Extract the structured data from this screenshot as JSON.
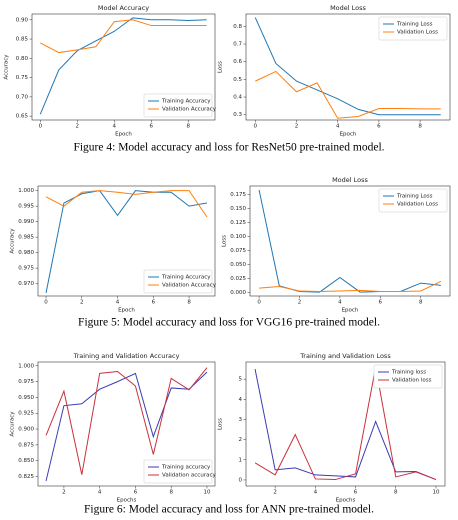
{
  "chart_data": [
    {
      "type": "line",
      "title": "Model Accuracy",
      "x_label": "Epoch",
      "y_label": "Accuracy",
      "x": [
        0,
        1,
        2,
        3,
        4,
        5,
        6,
        7,
        8,
        9
      ],
      "xlim": [
        -0.45,
        9.45
      ],
      "xticks": [
        0,
        2,
        4,
        6,
        8
      ],
      "ylim": [
        0.64,
        0.915
      ],
      "yticks": [
        {
          "value": 0.65,
          "label": "0.65"
        },
        {
          "value": 0.7,
          "label": "0.70"
        },
        {
          "value": 0.75,
          "label": "0.75"
        },
        {
          "value": 0.8,
          "label": "0.80"
        },
        {
          "value": 0.85,
          "label": "0.85"
        },
        {
          "value": 0.9,
          "label": "0.90"
        }
      ],
      "legend": "lower right",
      "series": [
        {
          "name": "Training Accuracy",
          "color": "#1f77b4",
          "values": [
            0.655,
            0.77,
            0.82,
            0.845,
            0.87,
            0.905,
            0.9,
            0.9,
            0.898,
            0.9
          ]
        },
        {
          "name": "Validation Accuracy",
          "color": "#ff7f0e",
          "values": [
            0.84,
            0.815,
            0.822,
            0.83,
            0.895,
            0.9,
            0.885,
            0.885,
            0.885,
            0.885
          ]
        }
      ]
    },
    {
      "type": "line",
      "title": "Model Loss",
      "x_label": "Epoch",
      "y_label": "Loss",
      "x": [
        0,
        1,
        2,
        3,
        4,
        5,
        6,
        7,
        8,
        9
      ],
      "xlim": [
        -0.45,
        9.45
      ],
      "xticks": [
        0,
        2,
        4,
        6,
        8
      ],
      "ylim": [
        0.27,
        0.87
      ],
      "yticks": [
        0.3,
        0.4,
        0.5,
        0.6,
        0.7,
        0.8
      ],
      "legend": "upper right",
      "series": [
        {
          "name": "Training Loss",
          "color": "#1f77b4",
          "values": [
            0.85,
            0.59,
            0.49,
            0.44,
            0.39,
            0.33,
            0.3,
            0.3,
            0.3,
            0.3
          ]
        },
        {
          "name": "Validation Loss",
          "color": "#ff7f0e",
          "values": [
            0.49,
            0.545,
            0.43,
            0.48,
            0.28,
            0.29,
            0.335,
            0.335,
            0.333,
            0.333
          ]
        }
      ]
    },
    {
      "type": "line",
      "title": "",
      "x_label": "Epoch",
      "y_label": "Accuracy",
      "x": [
        0,
        1,
        2,
        3,
        4,
        5,
        6,
        7,
        8,
        9
      ],
      "xlim": [
        -0.45,
        9.45
      ],
      "xticks": [
        0,
        2,
        4,
        6,
        8
      ],
      "ylim": [
        0.966,
        1.0015
      ],
      "yticks": [
        {
          "value": 0.97,
          "label": "0.970"
        },
        {
          "value": 0.975,
          "label": "0.975"
        },
        {
          "value": 0.98,
          "label": "0.980"
        },
        {
          "value": 0.985,
          "label": "0.985"
        },
        {
          "value": 0.99,
          "label": "0.990"
        },
        {
          "value": 0.995,
          "label": "0.995"
        },
        {
          "value": 1.0,
          "label": "1.000"
        }
      ],
      "legend": "lower right",
      "series": [
        {
          "name": "Training Accuracy",
          "color": "#1f77b4",
          "values": [
            0.967,
            0.996,
            0.999,
            1.0,
            0.992,
            1.0,
            0.9995,
            0.9995,
            0.995,
            0.996
          ]
        },
        {
          "name": "Validation Accuracy",
          "color": "#ff7f0e",
          "values": [
            0.998,
            0.995,
            0.9995,
            1.0,
            0.9995,
            0.9988,
            0.9995,
            1.0,
            1.0,
            0.9915
          ]
        }
      ]
    },
    {
      "type": "line",
      "title": "Model Loss",
      "x_label": "Epoch",
      "y_label": "Loss",
      "x": [
        0,
        1,
        2,
        3,
        4,
        5,
        6,
        7,
        8,
        9
      ],
      "xlim": [
        -0.45,
        9.45
      ],
      "xticks": [
        0,
        2,
        4,
        6,
        8
      ],
      "ylim": [
        -0.006,
        0.19
      ],
      "yticks": [
        {
          "value": 0,
          "label": "0.000"
        },
        {
          "value": 0.025,
          "label": "0.025"
        },
        {
          "value": 0.05,
          "label": "0.050"
        },
        {
          "value": 0.075,
          "label": "0.075"
        },
        {
          "value": 0.1,
          "label": "0.100"
        },
        {
          "value": 0.125,
          "label": "0.125"
        },
        {
          "value": 0.15,
          "label": "0.150"
        },
        {
          "value": 0.175,
          "label": "0.175"
        }
      ],
      "legend": "upper right",
      "series": [
        {
          "name": "Training Loss",
          "color": "#1f77b4",
          "values": [
            0.183,
            0.012,
            0.002,
            0.001,
            0.027,
            0.001,
            0.002,
            0.002,
            0.017,
            0.013
          ]
        },
        {
          "name": "Validation Loss",
          "color": "#ff7f0e",
          "values": [
            0.008,
            0.011,
            0.003,
            0.002,
            0.003,
            0.004,
            0.002,
            0.002,
            0.003,
            0.02
          ]
        }
      ]
    },
    {
      "type": "line",
      "title": "Training and Validation Accuracy",
      "x_label": "Epochs",
      "y_label": "Accuracy",
      "x": [
        1,
        2,
        3,
        4,
        5,
        6,
        7,
        8,
        9,
        10
      ],
      "xlim": [
        0.55,
        10.45
      ],
      "xticks": [
        2,
        4,
        6,
        8,
        10
      ],
      "ylim": [
        0.81,
        1.006
      ],
      "yticks": [
        {
          "value": 0.825,
          "label": "0.825"
        },
        {
          "value": 0.85,
          "label": "0.850"
        },
        {
          "value": 0.875,
          "label": "0.875"
        },
        {
          "value": 0.9,
          "label": "0.900"
        },
        {
          "value": 0.925,
          "label": "0.925"
        },
        {
          "value": 0.95,
          "label": "0.950"
        },
        {
          "value": 0.975,
          "label": "0.975"
        },
        {
          "value": 1.0,
          "label": "1.000"
        }
      ],
      "legend": "lower right",
      "series": [
        {
          "name": "Training accuracy",
          "color": "#3b3bb3",
          "values": [
            0.818,
            0.937,
            0.94,
            0.963,
            0.975,
            0.988,
            0.888,
            0.965,
            0.963,
            0.99
          ]
        },
        {
          "name": "Validation accuracy",
          "color": "#c8323c",
          "values": [
            0.89,
            0.96,
            0.828,
            0.988,
            0.991,
            0.968,
            0.86,
            0.98,
            0.962,
            0.997
          ]
        }
      ]
    },
    {
      "type": "line",
      "title": "Training and Validation Loss",
      "x_label": "Epochs",
      "y_label": "Loss",
      "x": [
        1,
        2,
        3,
        4,
        5,
        6,
        7,
        8,
        9,
        10
      ],
      "xlim": [
        0.55,
        10.45
      ],
      "xticks": [
        2,
        4,
        6,
        8,
        10
      ],
      "ylim": [
        -0.3,
        5.85
      ],
      "yticks": [
        0,
        1,
        2,
        3,
        4,
        5
      ],
      "legend": "upper right",
      "series": [
        {
          "name": "Training loss",
          "color": "#3b3bb3",
          "values": [
            5.5,
            0.5,
            0.6,
            0.25,
            0.2,
            0.15,
            2.9,
            0.4,
            0.42,
            0.02
          ]
        },
        {
          "name": "Validation loss",
          "color": "#c8323c",
          "values": [
            0.85,
            0.25,
            2.25,
            0.05,
            0.02,
            0.3,
            5.6,
            0.15,
            0.4,
            0.02
          ]
        }
      ]
    }
  ],
  "captions": [
    "Figure 4: Model accuracy and loss for ResNet50 pre-trained model.",
    "Figure 5: Model accuracy  and loss for VGG16 pre-trained model.",
    "Figure 6: Model accuracy and loss for ANN pre-trained model."
  ]
}
